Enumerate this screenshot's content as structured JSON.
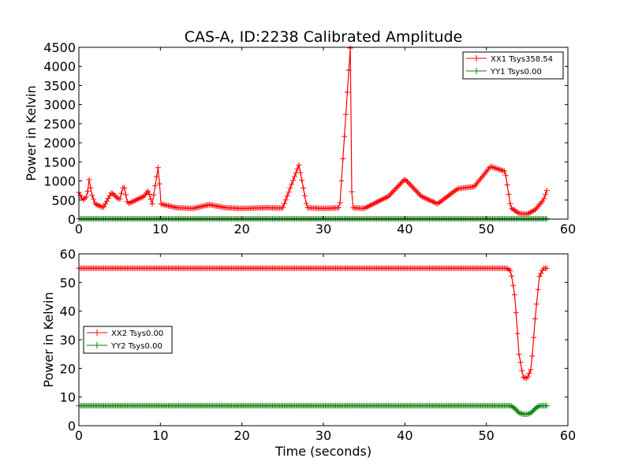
{
  "chart_data": [
    {
      "type": "line",
      "title": "CAS-A, ID:2238 Calibrated Amplitude",
      "xlabel": "",
      "ylabel": "Power in Kelvin",
      "xlim": [
        0,
        60
      ],
      "ylim": [
        0,
        4500
      ],
      "x_ticks": [
        "0",
        "10",
        "20",
        "30",
        "40",
        "50",
        "60"
      ],
      "y_ticks": [
        "0",
        "500",
        "1000",
        "1500",
        "2000",
        "2500",
        "3000",
        "3500",
        "4000",
        "4500"
      ],
      "legend_position": "top-right",
      "marker": "plus",
      "series": [
        {
          "name": "XX1 Tsys358.54",
          "color": "#ff0000",
          "x": [
            0,
            0.5,
            1,
            1.3,
            1.5,
            2,
            3,
            4,
            5,
            5.5,
            6,
            7,
            8,
            8.5,
            9,
            9.8,
            10,
            12,
            14,
            16,
            18,
            20,
            23,
            25,
            27,
            28,
            30,
            32,
            33.3,
            33.5,
            35,
            38,
            40,
            42,
            44,
            46.5,
            48.5,
            50.5,
            52.3,
            53,
            54,
            55,
            56,
            57,
            57.5
          ],
          "y": [
            700,
            500,
            600,
            1100,
            700,
            400,
            300,
            700,
            500,
            900,
            400,
            500,
            600,
            750,
            400,
            1450,
            400,
            300,
            280,
            380,
            300,
            280,
            300,
            290,
            1420,
            300,
            280,
            300,
            4480,
            300,
            280,
            600,
            1050,
            600,
            400,
            800,
            850,
            1380,
            1250,
            300,
            150,
            130,
            250,
            500,
            800
          ]
        },
        {
          "name": "YY1 Tsys0.00",
          "color": "#008000",
          "x": [
            0,
            57.5
          ],
          "y": [
            10,
            10
          ]
        }
      ]
    },
    {
      "type": "line",
      "title": "",
      "xlabel": "Time (seconds)",
      "ylabel": "Power in Kelvin",
      "xlim": [
        0,
        60
      ],
      "ylim": [
        0,
        60
      ],
      "x_ticks": [
        "0",
        "10",
        "20",
        "30",
        "40",
        "50",
        "60"
      ],
      "y_ticks": [
        "0",
        "10",
        "20",
        "30",
        "40",
        "50",
        "60"
      ],
      "legend_position": "center-left",
      "marker": "plus",
      "series": [
        {
          "name": "XX2 Tsys0.00",
          "color": "#ff0000",
          "x": [
            0,
            10,
            20,
            30,
            40,
            50,
            52.5,
            53,
            53.5,
            54,
            54.5,
            55,
            55.5,
            56,
            56.5,
            57,
            57.5
          ],
          "y": [
            55,
            55,
            55,
            55,
            55,
            55,
            55,
            54,
            45,
            25,
            17,
            16.5,
            20,
            38,
            52,
            55,
            55
          ]
        },
        {
          "name": "YY2 Tsys0.00",
          "color": "#008000",
          "x": [
            0,
            10,
            20,
            30,
            40,
            50,
            53,
            53.5,
            54,
            54.5,
            55,
            55.5,
            56,
            56.5,
            57,
            57.5
          ],
          "y": [
            7,
            7,
            7,
            7,
            7,
            7,
            7,
            6,
            4.5,
            4,
            4,
            4.5,
            6,
            7,
            7,
            7
          ]
        }
      ]
    }
  ]
}
